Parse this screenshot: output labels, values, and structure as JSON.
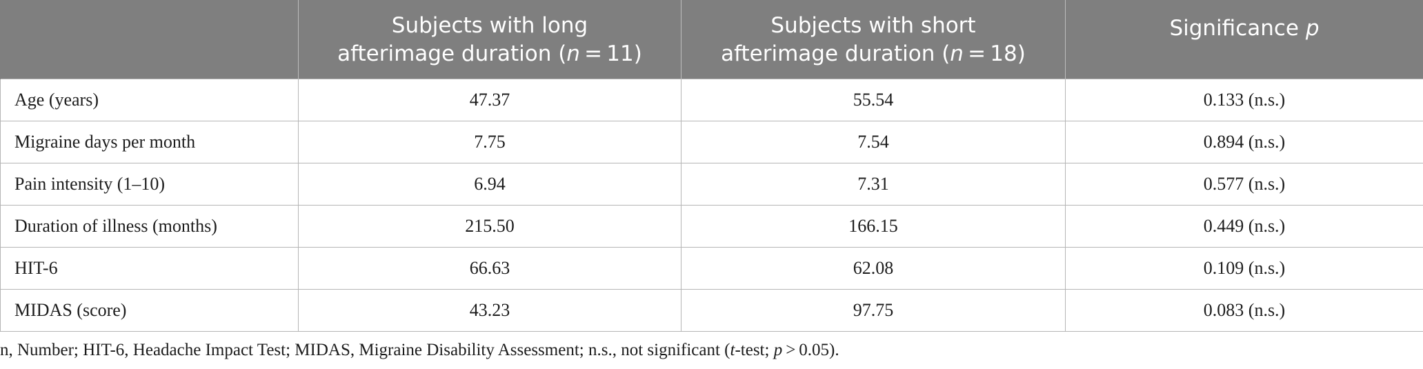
{
  "table": {
    "headers": {
      "col0": "",
      "col1_line1": "Subjects with long",
      "col1_line2_prefix": "afterimage duration (",
      "col1_n": "n",
      "col1_line2_suffix": " = 11)",
      "col2_line1": "Subjects with short",
      "col2_line2_prefix": "afterimage duration (",
      "col2_n": "n",
      "col2_line2_suffix": " = 18)",
      "col3_text": "Significance ",
      "col3_p": "p"
    },
    "rows": [
      {
        "label": "Age (years)",
        "long": "47.37",
        "short": "55.54",
        "p": "0.133 (n.s.)"
      },
      {
        "label": "Migraine days per month",
        "long": "7.75",
        "short": "7.54",
        "p": "0.894 (n.s.)"
      },
      {
        "label": "Pain intensity (1–10)",
        "long": "6.94",
        "short": "7.31",
        "p": "0.577 (n.s.)"
      },
      {
        "label": "Duration of illness (months)",
        "long": "215.50",
        "short": "166.15",
        "p": "0.449 (n.s.)"
      },
      {
        "label": "HIT-6",
        "long": "66.63",
        "short": "62.08",
        "p": "0.109 (n.s.)"
      },
      {
        "label": "MIDAS (score)",
        "long": "43.23",
        "short": "97.75",
        "p": "0.083 (n.s.)"
      }
    ]
  },
  "footnote": {
    "part1": "n, Number; HIT-6, Headache Impact Test; MIDAS, Migraine Disability Assessment; n.s., not significant (",
    "t": "t",
    "part2": "-test; ",
    "p": "p",
    "part3": " > 0.05)."
  }
}
